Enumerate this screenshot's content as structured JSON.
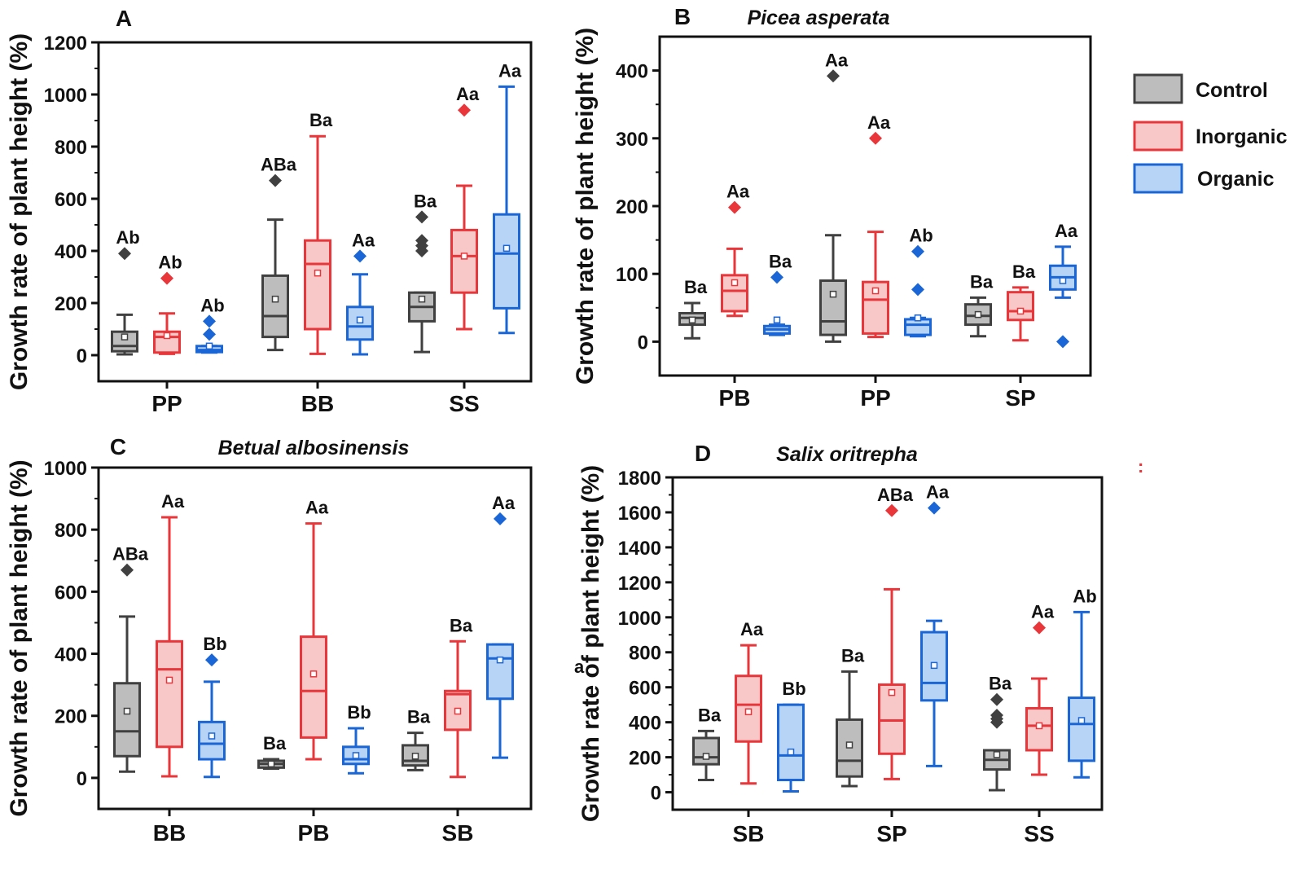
{
  "colors": {
    "Control": {
      "stroke": "#404040",
      "fill": "#bdbdbd"
    },
    "Inorganic": {
      "stroke": "#e8363a",
      "fill": "#f8c8c9"
    },
    "Organic": {
      "stroke": "#1a66d6",
      "fill": "#b7d3f5"
    }
  },
  "legend": [
    "Control",
    "Inorganic",
    "Organic"
  ],
  "stray_marks": {
    "left_label": "a",
    "dots": ":"
  },
  "chart_data": [
    {
      "id": "A",
      "type": "box",
      "panel_letter": "A",
      "title": "",
      "ylabel": "Growth rate of plant height (%)",
      "ylim": [
        -100,
        1200
      ],
      "yticks": [
        0,
        200,
        400,
        600,
        800,
        1000,
        1200
      ],
      "categories": [
        "PP",
        "BB",
        "SS"
      ],
      "series": [
        {
          "name": "Control",
          "boxes": [
            {
              "min": 3,
              "q1": 15,
              "median": 35,
              "q3": 90,
              "max": 155,
              "mean": 70,
              "outliers": [
                390
              ],
              "label": "Ab"
            },
            {
              "min": 20,
              "q1": 70,
              "median": 150,
              "q3": 305,
              "max": 520,
              "mean": 215,
              "outliers": [
                670
              ],
              "label": "ABa"
            },
            {
              "min": 12,
              "q1": 130,
              "median": 185,
              "q3": 240,
              "max": 240,
              "mean": 215,
              "outliers": [
                530,
                440,
                420,
                400
              ],
              "label": "Ba"
            }
          ]
        },
        {
          "name": "Inorganic",
          "boxes": [
            {
              "min": 5,
              "q1": 10,
              "median": 70,
              "q3": 90,
              "max": 160,
              "mean": 75,
              "outliers": [
                295
              ],
              "label": "Ab"
            },
            {
              "min": 5,
              "q1": 100,
              "median": 350,
              "q3": 440,
              "max": 840,
              "mean": 315,
              "outliers": [],
              "label": "Ba"
            },
            {
              "min": 100,
              "q1": 240,
              "median": 380,
              "q3": 480,
              "max": 650,
              "mean": 380,
              "outliers": [
                940
              ],
              "label": "Aa"
            }
          ]
        },
        {
          "name": "Organic",
          "boxes": [
            {
              "min": 10,
              "q1": 12,
              "median": 20,
              "q3": 35,
              "max": 35,
              "mean": 35,
              "outliers": [
                130,
                80
              ],
              "label": "Ab"
            },
            {
              "min": 3,
              "q1": 60,
              "median": 110,
              "q3": 185,
              "max": 310,
              "mean": 135,
              "outliers": [
                380
              ],
              "label": "Aa"
            },
            {
              "min": 85,
              "q1": 180,
              "median": 390,
              "q3": 540,
              "max": 1030,
              "mean": 410,
              "outliers": [],
              "label": "Aa"
            }
          ]
        }
      ]
    },
    {
      "id": "B",
      "type": "box",
      "panel_letter": "B",
      "title": "Picea asperata",
      "ylabel": "Growth rate of plant height (%)",
      "ylim": [
        -50,
        450
      ],
      "yticks": [
        0,
        100,
        200,
        300,
        400
      ],
      "categories": [
        "PB",
        "PP",
        "SP"
      ],
      "series": [
        {
          "name": "Control",
          "boxes": [
            {
              "min": 5,
              "q1": 25,
              "median": 35,
              "q3": 42,
              "max": 57,
              "mean": 32,
              "outliers": [],
              "label": "Ba"
            },
            {
              "min": 0,
              "q1": 10,
              "median": 30,
              "q3": 90,
              "max": 157,
              "mean": 70,
              "outliers": [
                392
              ],
              "label": "Aa"
            },
            {
              "min": 8,
              "q1": 25,
              "median": 38,
              "q3": 55,
              "max": 65,
              "mean": 40,
              "outliers": [],
              "label": "Ba"
            }
          ]
        },
        {
          "name": "Inorganic",
          "boxes": [
            {
              "min": 38,
              "q1": 45,
              "median": 75,
              "q3": 98,
              "max": 137,
              "mean": 87,
              "outliers": [
                198
              ],
              "label": "Aa"
            },
            {
              "min": 7,
              "q1": 12,
              "median": 62,
              "q3": 88,
              "max": 162,
              "mean": 75,
              "outliers": [
                300
              ],
              "label": "Aa"
            },
            {
              "min": 2,
              "q1": 32,
              "median": 45,
              "q3": 73,
              "max": 80,
              "mean": 45,
              "outliers": [],
              "label": "Ba"
            }
          ]
        },
        {
          "name": "Organic",
          "boxes": [
            {
              "min": 10,
              "q1": 12,
              "median": 18,
              "q3": 23,
              "max": 25,
              "mean": 32,
              "outliers": [
                95
              ],
              "label": "Ba"
            },
            {
              "min": 8,
              "q1": 10,
              "median": 25,
              "q3": 33,
              "max": 35,
              "mean": 35,
              "outliers": [
                133,
                77
              ],
              "label": "Ab"
            },
            {
              "min": 65,
              "q1": 77,
              "median": 95,
              "q3": 112,
              "max": 140,
              "mean": 90,
              "outliers": [
                0
              ],
              "label": "Aa"
            }
          ]
        }
      ]
    },
    {
      "id": "C",
      "type": "box",
      "panel_letter": "C",
      "title": "Betual albosinensis",
      "ylabel": "Growth rate of plant height (%)",
      "ylim": [
        -100,
        1000
      ],
      "yticks": [
        0,
        200,
        400,
        600,
        800,
        1000
      ],
      "categories": [
        "BB",
        "PB",
        "SB"
      ],
      "series": [
        {
          "name": "Control",
          "boxes": [
            {
              "min": 20,
              "q1": 70,
              "median": 150,
              "q3": 305,
              "max": 520,
              "mean": 215,
              "outliers": [
                670
              ],
              "label": "ABa"
            },
            {
              "min": 30,
              "q1": 33,
              "median": 45,
              "q3": 55,
              "max": 60,
              "mean": 45,
              "outliers": [],
              "label": "Ba"
            },
            {
              "min": 25,
              "q1": 40,
              "median": 55,
              "q3": 105,
              "max": 145,
              "mean": 70,
              "outliers": [],
              "label": "Ba"
            }
          ]
        },
        {
          "name": "Inorganic",
          "boxes": [
            {
              "min": 5,
              "q1": 100,
              "median": 350,
              "q3": 440,
              "max": 840,
              "mean": 315,
              "outliers": [],
              "label": "Aa"
            },
            {
              "min": 60,
              "q1": 130,
              "median": 280,
              "q3": 455,
              "max": 820,
              "mean": 335,
              "outliers": [],
              "label": "Aa"
            },
            {
              "min": 3,
              "q1": 155,
              "median": 270,
              "q3": 280,
              "max": 440,
              "mean": 215,
              "outliers": [],
              "label": "Ba"
            }
          ]
        },
        {
          "name": "Organic",
          "boxes": [
            {
              "min": 3,
              "q1": 60,
              "median": 110,
              "q3": 180,
              "max": 310,
              "mean": 135,
              "outliers": [
                380
              ],
              "label": "Bb"
            },
            {
              "min": 15,
              "q1": 45,
              "median": 60,
              "q3": 100,
              "max": 160,
              "mean": 72,
              "outliers": [],
              "label": "Bb"
            },
            {
              "min": 65,
              "q1": 255,
              "median": 385,
              "q3": 430,
              "max": 430,
              "mean": 380,
              "outliers": [
                835
              ],
              "label": "Aa"
            }
          ]
        }
      ]
    },
    {
      "id": "D",
      "type": "box",
      "panel_letter": "D",
      "title": "Salix oritrepha",
      "ylabel": "Growth rate of plant height (%)",
      "ylim": [
        -100,
        1800
      ],
      "yticks": [
        0,
        200,
        400,
        600,
        800,
        1000,
        1200,
        1400,
        1600,
        1800
      ],
      "categories": [
        "SB",
        "SP",
        "SS"
      ],
      "series": [
        {
          "name": "Control",
          "boxes": [
            {
              "min": 70,
              "q1": 160,
              "median": 200,
              "q3": 310,
              "max": 350,
              "mean": 205,
              "outliers": [],
              "label": "Ba"
            },
            {
              "min": 35,
              "q1": 90,
              "median": 180,
              "q3": 415,
              "max": 690,
              "mean": 270,
              "outliers": [],
              "label": "Ba"
            },
            {
              "min": 12,
              "q1": 130,
              "median": 185,
              "q3": 240,
              "max": 240,
              "mean": 215,
              "outliers": [
                530,
                440,
                420,
                400
              ],
              "label": "Ba"
            }
          ]
        },
        {
          "name": "Inorganic",
          "boxes": [
            {
              "min": 50,
              "q1": 290,
              "median": 500,
              "q3": 665,
              "max": 840,
              "mean": 460,
              "outliers": [],
              "label": "Aa"
            },
            {
              "min": 75,
              "q1": 220,
              "median": 410,
              "q3": 615,
              "max": 1160,
              "mean": 570,
              "outliers": [
                1610
              ],
              "label": "ABa"
            },
            {
              "min": 100,
              "q1": 240,
              "median": 380,
              "q3": 480,
              "max": 650,
              "mean": 380,
              "outliers": [
                940
              ],
              "label": "Aa"
            }
          ]
        },
        {
          "name": "Organic",
          "boxes": [
            {
              "min": 5,
              "q1": 70,
              "median": 210,
              "q3": 500,
              "max": 500,
              "mean": 230,
              "outliers": [],
              "label": "Bb"
            },
            {
              "min": 150,
              "q1": 525,
              "median": 625,
              "q3": 915,
              "max": 980,
              "mean": 725,
              "outliers": [
                1625
              ],
              "label": "Aa"
            },
            {
              "min": 85,
              "q1": 180,
              "median": 390,
              "q3": 540,
              "max": 1030,
              "mean": 410,
              "outliers": [],
              "label": "Ab"
            }
          ]
        }
      ]
    }
  ]
}
